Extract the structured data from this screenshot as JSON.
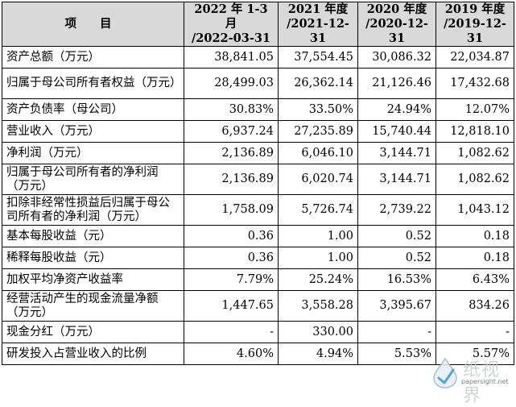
{
  "table": {
    "header": [
      "项 目",
      "2022 年 1-3 月\n/2022-03-31",
      "2021 年度\n/2021-12-31",
      "2020 年度\n/2020-12-31",
      "2019 年度\n/2019-12-31"
    ],
    "rows": [
      {
        "label": "资产总额（万元）",
        "values": [
          "38,841.05",
          "37,554.45",
          "30,086.32",
          "22,034.87"
        ]
      },
      {
        "label": "归属于母公司所有者权益（万元）",
        "values": [
          "28,499.03",
          "26,362.14",
          "21,126.46",
          "17,432.68"
        ]
      },
      {
        "label": "资产负债率（母公司）",
        "values": [
          "30.83%",
          "33.50%",
          "24.94%",
          "12.07%"
        ]
      },
      {
        "label": "营业收入（万元）",
        "values": [
          "6,937.24",
          "27,235.89",
          "15,740.44",
          "12,818.10"
        ]
      },
      {
        "label": "净利润（万元）",
        "values": [
          "2,136.89",
          "6,046.10",
          "3,144.71",
          "1,082.62"
        ]
      },
      {
        "label": "归属于母公司所有者的净利润（万元）",
        "values": [
          "2,136.89",
          "6,020.74",
          "3,144.71",
          "1,082.62"
        ]
      },
      {
        "label": "扣除非经常性损益后归属于母公司所有者的净利润（万元）",
        "values": [
          "1,758.09",
          "5,726.74",
          "2,739.22",
          "1,043.12"
        ]
      },
      {
        "label": "基本每股收益（元）",
        "values": [
          "0.36",
          "1.00",
          "0.52",
          "0.18"
        ]
      },
      {
        "label": "稀释每股收益（元）",
        "values": [
          "0.36",
          "1.00",
          "0.52",
          "0.18"
        ]
      },
      {
        "label": "加权平均净资产收益率",
        "values": [
          "7.79%",
          "25.24%",
          "16.53%",
          "6.43%"
        ]
      },
      {
        "label": "经营活动产生的现金流量净额（万元）",
        "values": [
          "1,447.65",
          "3,558.28",
          "3,395.67",
          "834.26"
        ]
      },
      {
        "label": "现金分红（万元）",
        "values": [
          "-",
          "330.00",
          "-",
          "-"
        ]
      },
      {
        "label": "研发投入占营业收入的比例",
        "values": [
          "4.60%",
          "4.94%",
          "5.53%",
          "5.57%"
        ]
      }
    ]
  },
  "watermark": {
    "text": "纸视界",
    "site": "papersight.net",
    "icon": "drop-logo-icon"
  }
}
